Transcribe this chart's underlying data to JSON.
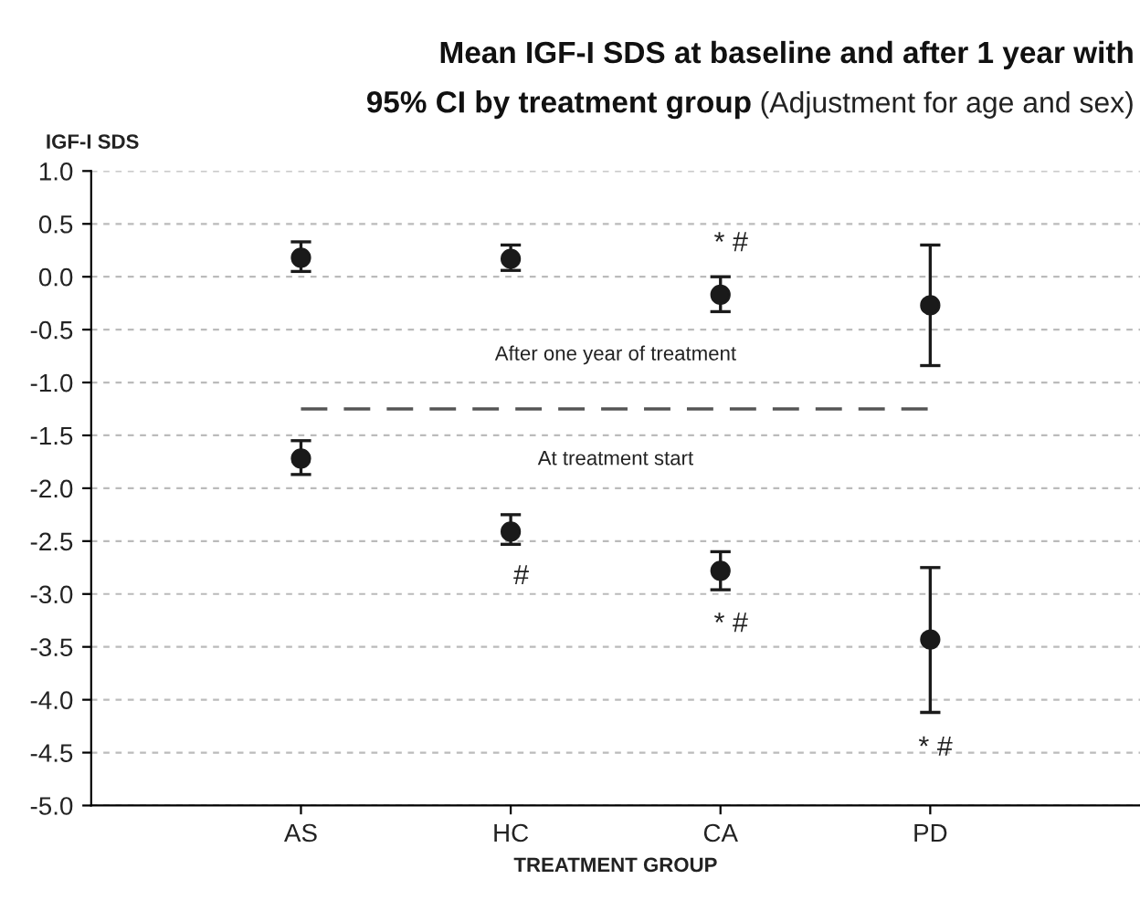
{
  "chart_data": {
    "type": "scatter",
    "title": "Mean IGF-I SDS at baseline and after 1 year with\n95% CI by treatment group",
    "subtitle": "(Adjustment for age and sex)",
    "ylabel": "IGF-I SDS",
    "xlabel": "TREATMENT GROUP",
    "categories": [
      "AS",
      "HC",
      "CA",
      "PD"
    ],
    "series": [
      {
        "color": "#1a1a1a",
        "values": [
          0.18,
          0.17,
          -0.17,
          -0.27
        ],
        "errors": [
          [
            0.05,
            0.33
          ],
          [
            0.06,
            0.3
          ],
          [
            -0.33,
            0.0
          ],
          [
            -0.84,
            0.3
          ]
        ]
      },
      {
        "color": "#1a1a1a",
        "values": [
          -1.72,
          -2.41,
          -2.78,
          -3.43
        ],
        "errors": [
          [
            -1.87,
            -1.55
          ],
          [
            -2.53,
            -2.25
          ],
          [
            -2.96,
            -2.6
          ],
          [
            -4.12,
            -2.75
          ]
        ]
      }
    ],
    "marker": "circle",
    "ylim": [
      -5,
      1
    ],
    "yticks": [
      {
        "value": -5,
        "label": "-5.0"
      },
      {
        "value": -4.5,
        "label": "-4.5"
      },
      {
        "value": -4,
        "label": "-4.0"
      },
      {
        "value": -3.5,
        "label": "-3.5"
      },
      {
        "value": -3,
        "label": "-3.0"
      },
      {
        "value": -2.5,
        "label": "-2.5"
      },
      {
        "value": -2,
        "label": "-2.0"
      },
      {
        "value": -1.5,
        "label": "-1.5"
      },
      {
        "value": -1,
        "label": "-1.0"
      },
      {
        "value": -0.5,
        "label": "-0.5"
      },
      {
        "value": 0,
        "label": "0.0"
      },
      {
        "value": 0.5,
        "label": "0.5"
      },
      {
        "value": 1,
        "label": "1.0"
      }
    ],
    "grid": "y",
    "ref_lines": [
      {
        "axis": "y",
        "value": -1.25,
        "color": "#555555",
        "line_style": "dashed"
      }
    ],
    "annotations": [
      "After one year of treatment",
      "At treatment start",
      "* #",
      "#",
      "* #",
      "* #"
    ]
  }
}
